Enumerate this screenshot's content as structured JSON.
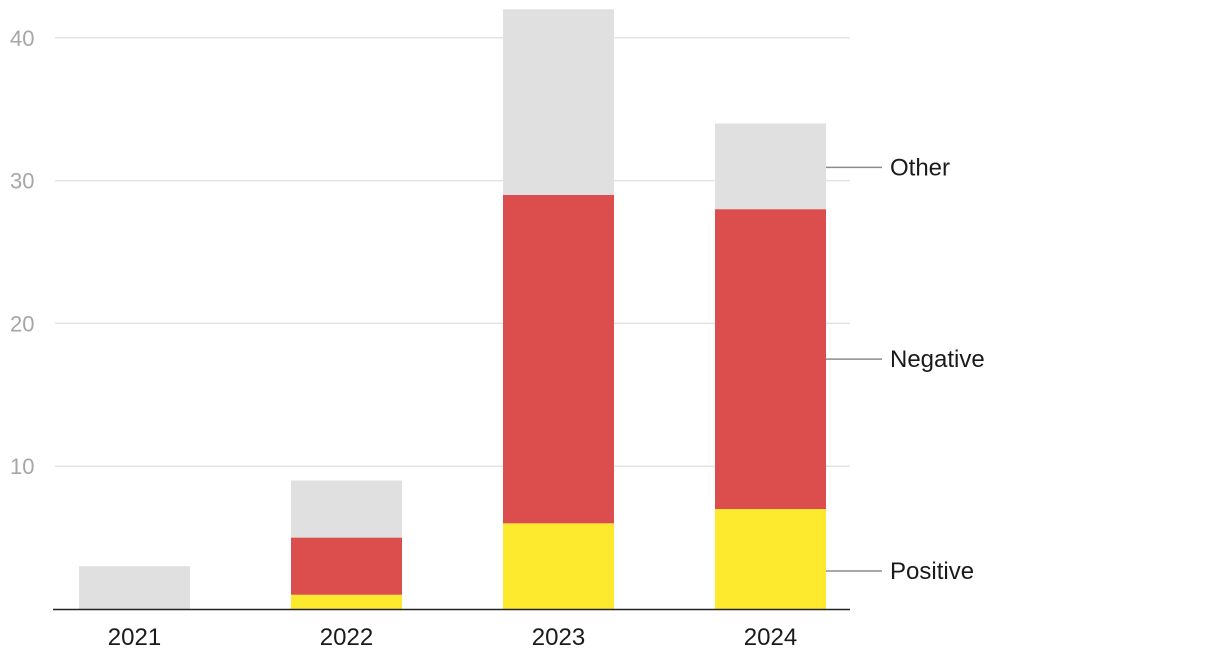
{
  "chart_data": {
    "type": "bar",
    "stacked": true,
    "categories": [
      "2021",
      "2022",
      "2023",
      "2024"
    ],
    "series": [
      {
        "name": "Positive",
        "values": [
          0,
          1,
          6,
          7
        ],
        "color": "#fde92e"
      },
      {
        "name": "Negative",
        "values": [
          0,
          4,
          23,
          21
        ],
        "color": "#dc4d4d"
      },
      {
        "name": "Other",
        "values": [
          3,
          4,
          13,
          6
        ],
        "color": "#e0e0e0"
      }
    ],
    "y_ticks": [
      10,
      20,
      30,
      40
    ],
    "ylim": [
      0,
      42
    ],
    "grid": true,
    "legend": "right, labels aligned to 2024 bar segments",
    "title": "",
    "xlabel": "",
    "ylabel": ""
  }
}
